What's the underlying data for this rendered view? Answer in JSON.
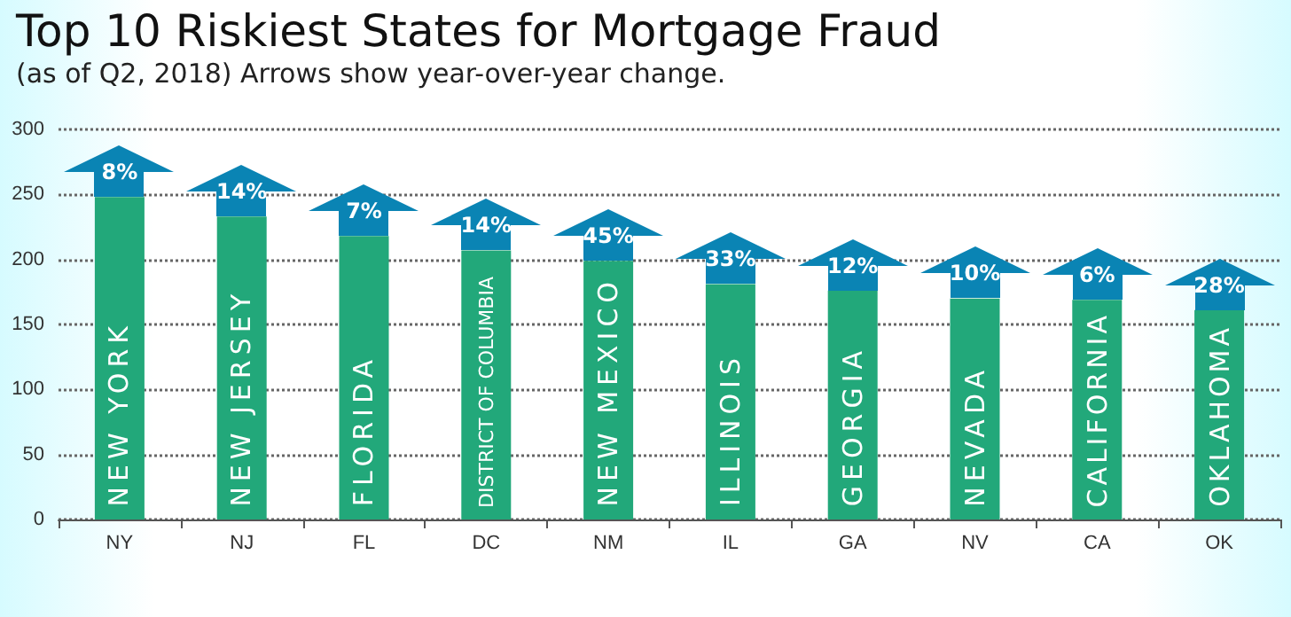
{
  "chart_data": {
    "type": "bar",
    "title": "Top 10 Riskiest States for Mortgage Fraud",
    "subtitle": "(as of Q2, 2018) Arrows show year-over-year change.",
    "categories": [
      "NY",
      "NJ",
      "FL",
      "DC",
      "NM",
      "IL",
      "GA",
      "NV",
      "CA",
      "OK"
    ],
    "values": [
      248,
      233,
      218,
      207,
      199,
      181,
      176,
      170,
      169,
      161
    ],
    "color": "#22a87a",
    "ylim": [
      0,
      300
    ],
    "yticks": [
      0,
      50,
      100,
      150,
      200,
      250,
      300
    ],
    "grid": "y",
    "annotations": [
      {
        "text": "8%",
        "x": "NY",
        "y": 248
      },
      {
        "text": "14%",
        "x": "NJ",
        "y": 233
      },
      {
        "text": "7%",
        "x": "FL",
        "y": 218
      },
      {
        "text": "14%",
        "x": "DC",
        "y": 207
      },
      {
        "text": "45%",
        "x": "NM",
        "y": 199
      },
      {
        "text": "33%",
        "x": "IL",
        "y": 181
      },
      {
        "text": "12%",
        "x": "GA",
        "y": 176
      },
      {
        "text": "10%",
        "x": "NV",
        "y": 170
      },
      {
        "text": "6%",
        "x": "CA",
        "y": 169
      },
      {
        "text": "28%",
        "x": "OK",
        "y": 161
      },
      "NEW YORK",
      "NEW JERSEY",
      "FLORIDA",
      "DISTRICT OF COLUMBIA",
      "NEW MEXICO",
      "ILLINOIS",
      "GEORGIA",
      "NEVADA",
      "CALIFORNIA",
      "OKLAHOMA"
    ]
  }
}
